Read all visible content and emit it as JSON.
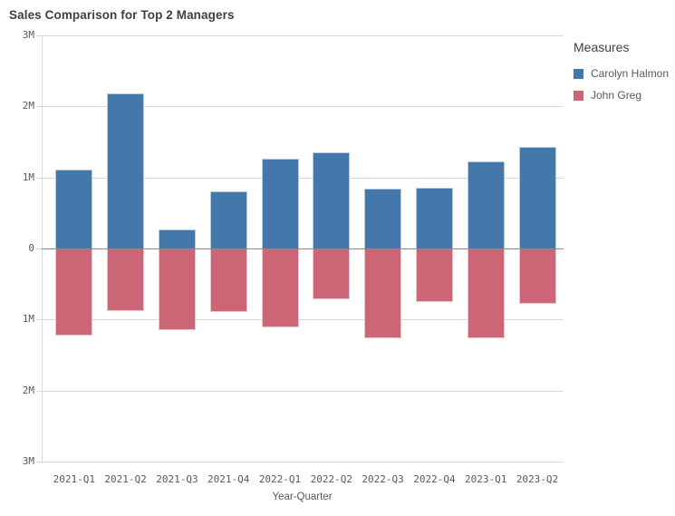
{
  "title": "Sales Comparison for Top 2 Managers",
  "legend": {
    "title": "Measures",
    "items": [
      {
        "label": "Carolyn Halmon",
        "color": "#4477aa"
      },
      {
        "label": "John Greg",
        "color": "#cc6677"
      }
    ]
  },
  "chart_data": {
    "type": "bar",
    "subtype": "diverging",
    "title": "Sales Comparison for Top 2 Managers",
    "categories": [
      "2021-Q1",
      "2021-Q2",
      "2021-Q3",
      "2021-Q4",
      "2022-Q1",
      "2022-Q2",
      "2022-Q3",
      "2022-Q4",
      "2023-Q1",
      "2023-Q2"
    ],
    "series": [
      {
        "name": "Carolyn Halmon",
        "color": "#4477aa",
        "direction": "up",
        "values_M": [
          1.11,
          2.18,
          0.27,
          0.81,
          1.27,
          1.35,
          0.84,
          0.86,
          1.23,
          1.43
        ]
      },
      {
        "name": "John Greg",
        "color": "#cc6677",
        "direction": "down",
        "values_M": [
          1.22,
          0.88,
          1.15,
          0.89,
          1.11,
          0.71,
          1.27,
          0.75,
          1.26,
          0.78
        ]
      }
    ],
    "xlabel": "Year-Quarter",
    "ylabel": "",
    "y_axis": {
      "tick_labels": [
        "3M",
        "2M",
        "1M",
        "0",
        "1M",
        "2M",
        "3M"
      ],
      "tick_values": [
        3,
        2,
        1,
        0,
        -1,
        -2,
        -3
      ],
      "range_M": [
        -3,
        3
      ]
    },
    "grid": true,
    "legend_position": "right"
  },
  "colors": {
    "background": "#ffffff",
    "series_blue": "#4477aa",
    "series_blue_border": "#b7cbe0",
    "series_pink": "#cc6677",
    "series_pink_border": "#eac3cc",
    "gridline": "#d9d9d9",
    "zero_line": "#8c8c8c",
    "axis_line": "#d9d9d9",
    "title_text": "#404040",
    "tick_text": "#595959"
  }
}
